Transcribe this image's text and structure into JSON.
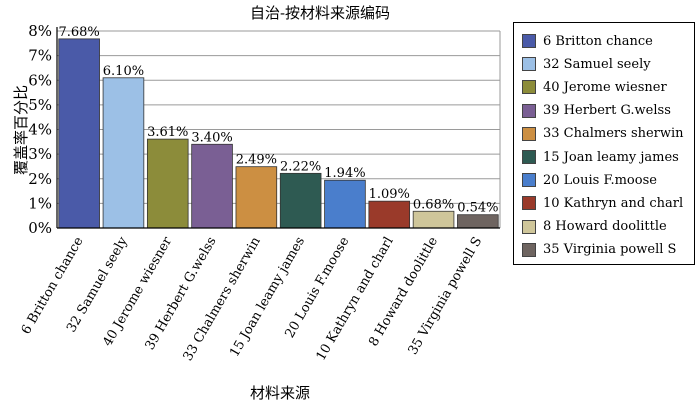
{
  "chart_data": {
    "type": "bar",
    "title": "自治-按材料来源编码",
    "xlabel": "材料来源",
    "ylabel": "覆盖率百分比",
    "ylim": [
      0,
      8
    ],
    "yticks": [
      "0%",
      "1%",
      "2%",
      "3%",
      "4%",
      "5%",
      "6%",
      "7%",
      "8%"
    ],
    "grid": true,
    "legend_position": "right",
    "categories": [
      "6 Britton chance",
      "32 Samuel seely",
      "40 Jerome wiesner",
      "39 Herbert G.welss",
      "33 Chalmers sherwin",
      "15 Joan leamy james",
      "20 Louis F.moose",
      "10 Kathryn and charl",
      "8 Howard doolittle",
      "35 Virginia powell S"
    ],
    "values": [
      7.68,
      6.1,
      3.61,
      3.4,
      2.49,
      2.22,
      1.94,
      1.09,
      0.68,
      0.54
    ],
    "value_labels": [
      "7.68%",
      "6.10%",
      "3.61%",
      "3.40%",
      "2.49%",
      "2.22%",
      "1.94%",
      "1.09%",
      "0.68%",
      "0.54%"
    ],
    "colors": [
      "#4a5aa8",
      "#9cc0e6",
      "#8c8c3a",
      "#7a5f94",
      "#cc8f42",
      "#2e5a52",
      "#4a7ecc",
      "#9a3a2a",
      "#cfc69a",
      "#6e6460"
    ],
    "legend": [
      "6 Britton chance",
      "32 Samuel seely",
      "40 Jerome wiesner",
      "39 Herbert G.welss",
      "33 Chalmers sherwin",
      "15 Joan leamy james",
      "20 Louis F.moose",
      "10 Kathryn and charl",
      "8 Howard doolittle",
      "35 Virginia powell S"
    ]
  }
}
